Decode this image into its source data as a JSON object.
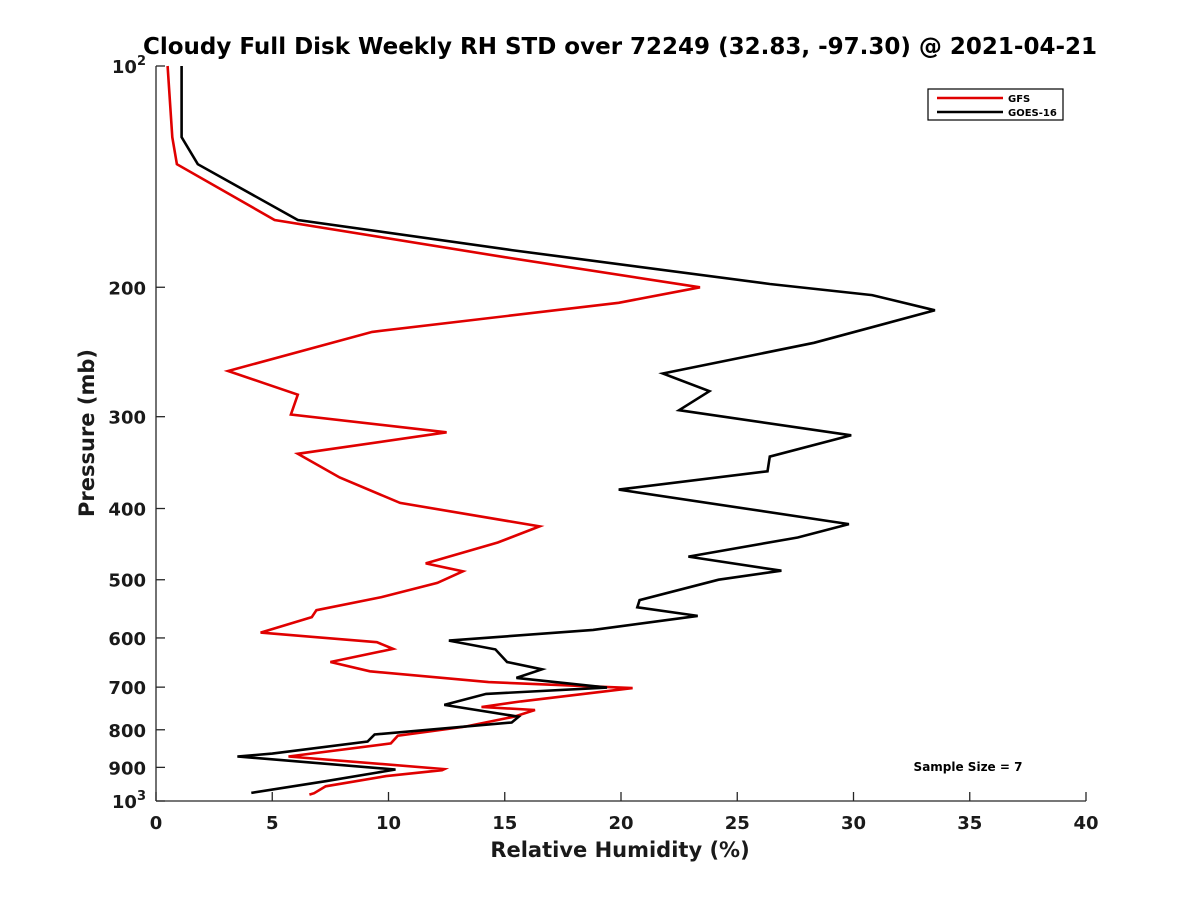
{
  "chart_data": {
    "type": "line",
    "title": "Cloudy Full Disk Weekly RH STD over 72249 (32.83, -97.30) @ 2021-04-21",
    "xlabel": "Relative Humidity (%)",
    "ylabel": "Pressure (mb)",
    "xlim": [
      0,
      40
    ],
    "ylim": [
      100,
      1000
    ],
    "yscale": "log",
    "y_reversed": true,
    "grid": false,
    "legend_position": "top-right",
    "xticks": [
      0,
      5,
      10,
      15,
      20,
      25,
      30,
      35,
      40
    ],
    "yticks": [
      {
        "value": 100,
        "base": "10",
        "exp": "2"
      },
      {
        "value": 200,
        "label": "200"
      },
      {
        "value": 300,
        "label": "300"
      },
      {
        "value": 400,
        "label": "400"
      },
      {
        "value": 500,
        "label": "500"
      },
      {
        "value": 600,
        "label": "600"
      },
      {
        "value": 700,
        "label": "700"
      },
      {
        "value": 800,
        "label": "800"
      },
      {
        "value": 900,
        "label": "900"
      },
      {
        "value": 1000,
        "base": "10",
        "exp": "3"
      }
    ],
    "annotation": "Sample Size = 7",
    "series": [
      {
        "name": "GFS",
        "color": "#e00000",
        "points": [
          [
            0.5,
            100
          ],
          [
            0.7,
            125
          ],
          [
            0.9,
            136
          ],
          [
            5.1,
            162
          ],
          [
            15.0,
            182
          ],
          [
            23.4,
            200
          ],
          [
            19.9,
            210
          ],
          [
            9.3,
            230
          ],
          [
            3.1,
            260
          ],
          [
            6.1,
            280
          ],
          [
            5.8,
            298
          ],
          [
            12.5,
            315
          ],
          [
            6.1,
            337
          ],
          [
            7.9,
            363
          ],
          [
            10.5,
            393
          ],
          [
            16.5,
            423
          ],
          [
            14.7,
            445
          ],
          [
            11.6,
            475
          ],
          [
            13.2,
            487
          ],
          [
            12.1,
            505
          ],
          [
            9.7,
            528
          ],
          [
            6.9,
            550
          ],
          [
            6.7,
            562
          ],
          [
            4.5,
            590
          ],
          [
            9.5,
            608
          ],
          [
            10.2,
            621
          ],
          [
            7.5,
            647
          ],
          [
            9.2,
            666
          ],
          [
            14.3,
            689
          ],
          [
            20.5,
            702
          ],
          [
            15.7,
            732
          ],
          [
            14.0,
            745
          ],
          [
            16.3,
            752
          ],
          [
            15.4,
            768
          ],
          [
            13.3,
            792
          ],
          [
            10.4,
            815
          ],
          [
            10.1,
            835
          ],
          [
            5.7,
            870
          ],
          [
            12.4,
            905
          ],
          [
            12.3,
            908
          ],
          [
            9.9,
            925
          ],
          [
            7.3,
            955
          ],
          [
            6.8,
            976
          ],
          [
            6.6,
            980
          ]
        ]
      },
      {
        "name": "GOES-16",
        "color": "#000000",
        "points": [
          [
            1.1,
            100
          ],
          [
            1.1,
            125
          ],
          [
            1.8,
            136
          ],
          [
            6.1,
            162
          ],
          [
            15.3,
            178
          ],
          [
            26.4,
            198
          ],
          [
            30.8,
            205
          ],
          [
            33.5,
            215
          ],
          [
            28.3,
            238
          ],
          [
            21.8,
            262
          ],
          [
            23.8,
            277
          ],
          [
            22.5,
            294
          ],
          [
            29.9,
            318
          ],
          [
            26.4,
            340
          ],
          [
            26.3,
            356
          ],
          [
            19.9,
            377
          ],
          [
            29.8,
            420
          ],
          [
            27.6,
            438
          ],
          [
            22.9,
            465
          ],
          [
            26.9,
            486
          ],
          [
            24.2,
            500
          ],
          [
            20.8,
            533
          ],
          [
            20.7,
            545
          ],
          [
            23.3,
            560
          ],
          [
            18.8,
            585
          ],
          [
            12.6,
            605
          ],
          [
            14.6,
            622
          ],
          [
            15.1,
            647
          ],
          [
            16.6,
            662
          ],
          [
            15.5,
            680
          ],
          [
            19.4,
            701
          ],
          [
            14.2,
            715
          ],
          [
            12.4,
            740
          ],
          [
            15.6,
            768
          ],
          [
            15.3,
            782
          ],
          [
            9.4,
            812
          ],
          [
            9.1,
            830
          ],
          [
            5.0,
            862
          ],
          [
            3.5,
            870
          ],
          [
            10.3,
            906
          ],
          [
            9.5,
            915
          ],
          [
            7.3,
            940
          ],
          [
            4.1,
            975
          ]
        ]
      }
    ]
  }
}
